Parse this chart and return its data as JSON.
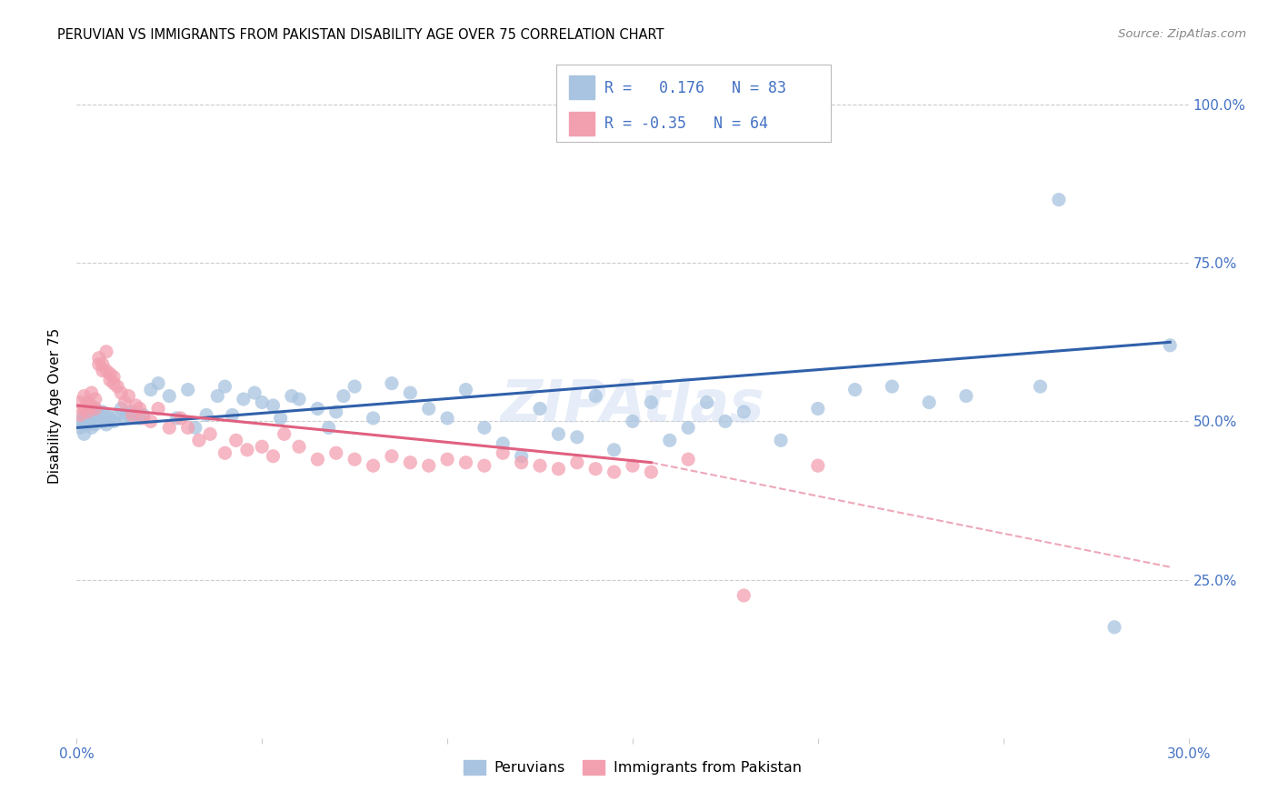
{
  "title": "PERUVIAN VS IMMIGRANTS FROM PAKISTAN DISABILITY AGE OVER 75 CORRELATION CHART",
  "source": "Source: ZipAtlas.com",
  "ylabel": "Disability Age Over 75",
  "xlim": [
    0.0,
    0.3
  ],
  "ylim": [
    0.0,
    1.05
  ],
  "blue_R": 0.176,
  "blue_N": 83,
  "pink_R": -0.35,
  "pink_N": 64,
  "blue_color": "#a8c4e0",
  "pink_color": "#f2a0b0",
  "blue_line_color": "#3060aa",
  "pink_line_color": "#e06080",
  "blue_scatter_x": [
    0.001,
    0.001,
    0.002,
    0.002,
    0.002,
    0.003,
    0.003,
    0.003,
    0.004,
    0.004,
    0.004,
    0.005,
    0.005,
    0.005,
    0.006,
    0.006,
    0.007,
    0.007,
    0.008,
    0.008,
    0.009,
    0.01,
    0.011,
    0.012,
    0.013,
    0.014,
    0.015,
    0.016,
    0.017,
    0.018,
    0.02,
    0.022,
    0.025,
    0.027,
    0.03,
    0.032,
    0.035,
    0.038,
    0.04,
    0.042,
    0.045,
    0.048,
    0.05,
    0.053,
    0.055,
    0.058,
    0.06,
    0.065,
    0.068,
    0.07,
    0.072,
    0.075,
    0.08,
    0.085,
    0.09,
    0.095,
    0.1,
    0.105,
    0.11,
    0.115,
    0.12,
    0.125,
    0.13,
    0.135,
    0.14,
    0.145,
    0.15,
    0.155,
    0.16,
    0.165,
    0.17,
    0.175,
    0.18,
    0.19,
    0.2,
    0.21,
    0.22,
    0.23,
    0.24,
    0.26,
    0.265,
    0.28,
    0.295
  ],
  "blue_scatter_y": [
    0.49,
    0.5,
    0.495,
    0.51,
    0.48,
    0.505,
    0.495,
    0.51,
    0.5,
    0.515,
    0.49,
    0.505,
    0.52,
    0.495,
    0.51,
    0.505,
    0.5,
    0.515,
    0.495,
    0.51,
    0.505,
    0.5,
    0.51,
    0.52,
    0.505,
    0.51,
    0.515,
    0.51,
    0.505,
    0.51,
    0.55,
    0.56,
    0.54,
    0.505,
    0.55,
    0.49,
    0.51,
    0.54,
    0.555,
    0.51,
    0.535,
    0.545,
    0.53,
    0.525,
    0.505,
    0.54,
    0.535,
    0.52,
    0.49,
    0.515,
    0.54,
    0.555,
    0.505,
    0.56,
    0.545,
    0.52,
    0.505,
    0.55,
    0.49,
    0.465,
    0.445,
    0.52,
    0.48,
    0.475,
    0.54,
    0.455,
    0.5,
    0.53,
    0.47,
    0.49,
    0.53,
    0.5,
    0.515,
    0.47,
    0.52,
    0.55,
    0.555,
    0.53,
    0.54,
    0.555,
    0.85,
    0.175,
    0.62
  ],
  "pink_scatter_x": [
    0.001,
    0.001,
    0.002,
    0.002,
    0.003,
    0.003,
    0.004,
    0.004,
    0.005,
    0.005,
    0.006,
    0.006,
    0.007,
    0.007,
    0.008,
    0.008,
    0.009,
    0.009,
    0.01,
    0.01,
    0.011,
    0.012,
    0.013,
    0.014,
    0.015,
    0.016,
    0.017,
    0.018,
    0.02,
    0.022,
    0.025,
    0.028,
    0.03,
    0.033,
    0.036,
    0.04,
    0.043,
    0.046,
    0.05,
    0.053,
    0.056,
    0.06,
    0.065,
    0.07,
    0.075,
    0.08,
    0.085,
    0.09,
    0.095,
    0.1,
    0.105,
    0.11,
    0.115,
    0.12,
    0.125,
    0.13,
    0.135,
    0.14,
    0.145,
    0.15,
    0.155,
    0.165,
    0.18,
    0.2
  ],
  "pink_scatter_y": [
    0.51,
    0.53,
    0.52,
    0.54,
    0.515,
    0.53,
    0.525,
    0.545,
    0.52,
    0.535,
    0.59,
    0.6,
    0.58,
    0.59,
    0.61,
    0.58,
    0.575,
    0.565,
    0.56,
    0.57,
    0.555,
    0.545,
    0.53,
    0.54,
    0.51,
    0.525,
    0.52,
    0.505,
    0.5,
    0.52,
    0.49,
    0.505,
    0.49,
    0.47,
    0.48,
    0.45,
    0.47,
    0.455,
    0.46,
    0.445,
    0.48,
    0.46,
    0.44,
    0.45,
    0.44,
    0.43,
    0.445,
    0.435,
    0.43,
    0.44,
    0.435,
    0.43,
    0.45,
    0.435,
    0.43,
    0.425,
    0.435,
    0.425,
    0.42,
    0.43,
    0.42,
    0.44,
    0.225,
    0.43
  ],
  "blue_line_x0": 0.0,
  "blue_line_y0": 0.49,
  "blue_line_x1": 0.295,
  "blue_line_y1": 0.625,
  "pink_line_x0": 0.0,
  "pink_line_y0": 0.525,
  "pink_line_x1_solid": 0.155,
  "pink_line_y1_solid": 0.435,
  "pink_line_x1_dashed": 0.295,
  "pink_line_y1_dashed": 0.27
}
